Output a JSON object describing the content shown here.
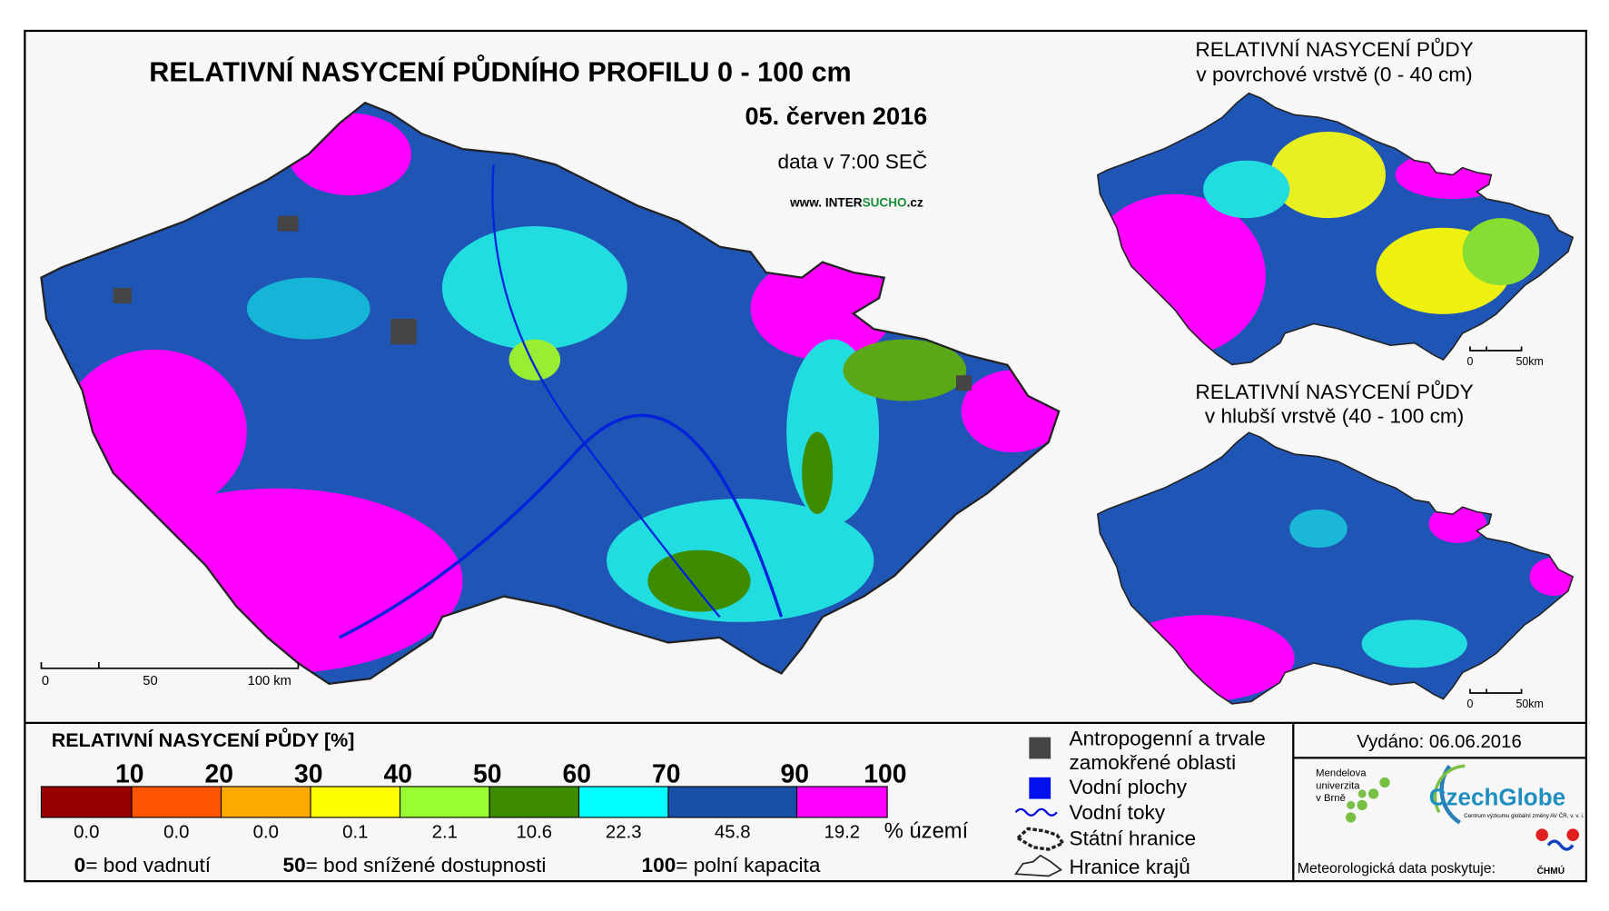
{
  "main_map": {
    "title": "RELATIVNÍ NASYCENÍ PŮDNÍHO PROFILU 0 - 100 cm",
    "date": "05. červen 2016",
    "time": "data v 7:00 SEČ",
    "website": {
      "prefix": "www. INTER",
      "highlight": "SUCHO",
      "suffix": ".cz"
    },
    "scale": [
      "0",
      "50",
      "100 km"
    ]
  },
  "inset_maps": [
    {
      "title_lines": [
        "RELATIVNÍ NASYCENÍ PŮDY",
        "v povrchové vrstvě (0 - 40 cm)"
      ],
      "scale": [
        "0",
        "50km"
      ]
    },
    {
      "title_lines": [
        "RELATIVNÍ NASYCENÍ PŮDY",
        "v hlubší vrstvě (40 - 100 cm)"
      ],
      "scale": [
        "0",
        "50km"
      ]
    }
  ],
  "legend": {
    "title": "RELATIVNÍ NASYCENÍ PŮDY [%]",
    "thresholds": [
      10,
      20,
      30,
      40,
      50,
      60,
      70,
      90,
      100
    ],
    "classes": [
      {
        "color": "#990000",
        "share": "0.0"
      },
      {
        "color": "#ff5500",
        "share": "0.0"
      },
      {
        "color": "#ffaa00",
        "share": "0.0"
      },
      {
        "color": "#ffff00",
        "share": "0.1"
      },
      {
        "color": "#99ff33",
        "share": "2.1"
      },
      {
        "color": "#3d8c00",
        "share": "10.6"
      },
      {
        "color": "#00ffff",
        "share": "22.3"
      },
      {
        "color": "#1a4fa8",
        "share": "45.8"
      },
      {
        "color": "#ff00ff",
        "share": "19.2"
      }
    ],
    "share_unit": "% území",
    "notes": [
      {
        "value": "0",
        "label": "= bod vadnutí"
      },
      {
        "value": "50",
        "label": "= bod snížené dostupnosti"
      },
      {
        "value": "100",
        "label": "= polní kapacita"
      }
    ]
  },
  "symbols": [
    {
      "lines": [
        "Antropogenní a trvale",
        "zamokřené oblasti"
      ]
    },
    {
      "lines": [
        "Vodní plochy"
      ]
    },
    {
      "lines": [
        "Vodní toky"
      ]
    },
    {
      "lines": [
        "Státní hranice"
      ]
    },
    {
      "lines": [
        "Hranice krajů"
      ]
    }
  ],
  "issued": "Vydáno: 06.06.2016",
  "credits": {
    "mendel_lines": [
      "Mendelova",
      "univerzita",
      "v Brně"
    ],
    "czechglobe": "CzechGlobe",
    "czechglobe_subtitle": "Centrum výzkumu globální změny AV ČR, v. v. i.",
    "meteo": "Meteorologická data poskytuje:",
    "chmu": "ČHMÚ"
  }
}
